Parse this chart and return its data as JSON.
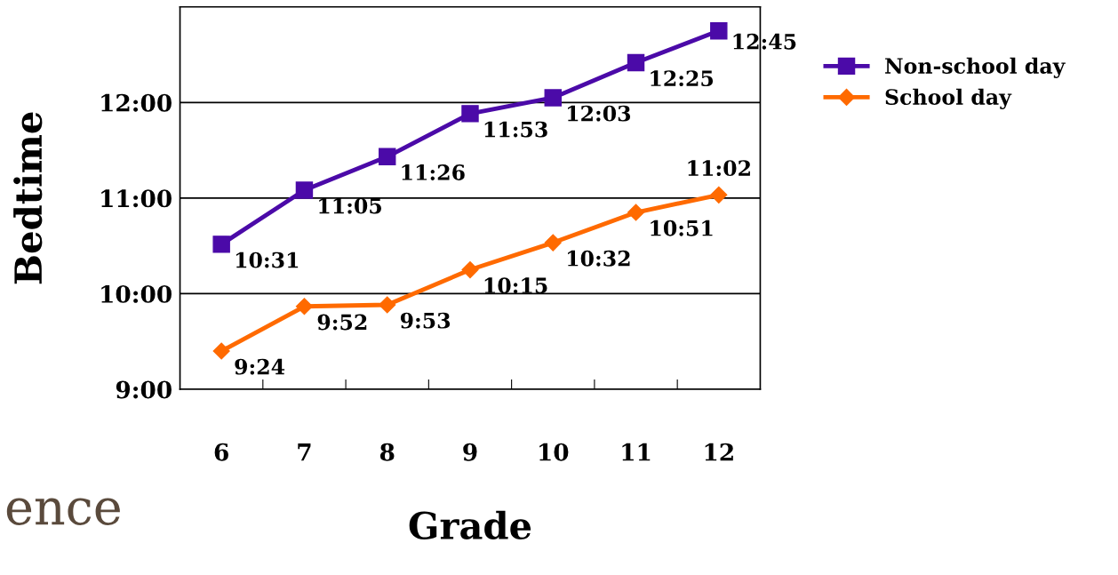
{
  "chart_data": {
    "type": "line",
    "xlabel": "Grade",
    "ylabel": "Bedtime",
    "categories": [
      "6",
      "7",
      "8",
      "9",
      "10",
      "11",
      "12"
    ],
    "series": [
      {
        "name": "Non-school day",
        "color": "#4b0aa8",
        "marker": "square",
        "values": [
          10.5167,
          11.0833,
          11.4333,
          11.8833,
          12.05,
          12.4167,
          12.75
        ],
        "value_labels": [
          "10:31",
          "11:05",
          "11:26",
          "11:53",
          "12:03",
          "12:25",
          "12:45"
        ]
      },
      {
        "name": "School day",
        "color": "#ff6a00",
        "marker": "diamond",
        "values": [
          9.4,
          9.8667,
          9.8833,
          10.25,
          10.5333,
          10.85,
          11.0333
        ],
        "value_labels": [
          "9:24",
          "9:52",
          "9:53",
          "10:15",
          "10:32",
          "10:51",
          "11:02"
        ]
      }
    ],
    "ylim": [
      9,
      13
    ],
    "yticks": [
      {
        "value": 9,
        "label": "9:00"
      },
      {
        "value": 10,
        "label": "10:00"
      },
      {
        "value": 11,
        "label": "11:00"
      },
      {
        "value": 12,
        "label": "12:00"
      }
    ],
    "grid": "y",
    "legend": "right",
    "line_style": "solid",
    "annotations": [
      "ence"
    ]
  }
}
